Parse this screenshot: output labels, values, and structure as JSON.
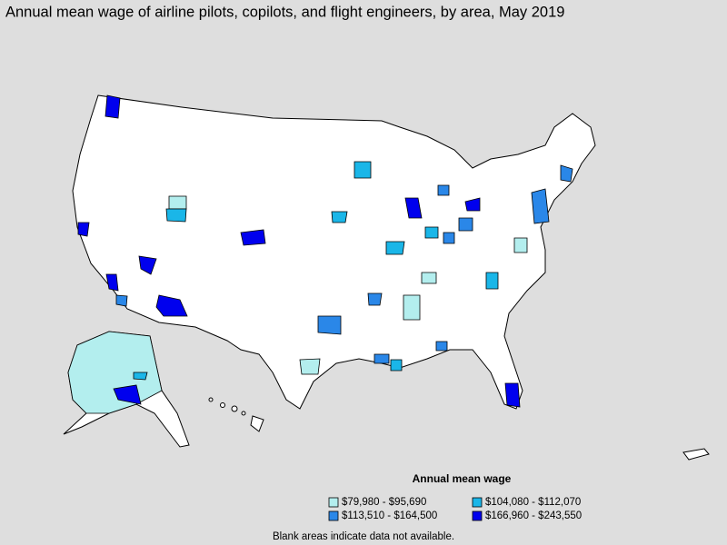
{
  "title": "Annual mean wage of airline pilots, copilots, and flight engineers, by area, May 2019",
  "legend": {
    "title": "Annual mean wage",
    "items": [
      {
        "label": "$79,980 - $95,690",
        "color": "#b3eeee"
      },
      {
        "label": "$104,080 - $112,070",
        "color": "#1ab6e8"
      },
      {
        "label": "$113,510 - $164,500",
        "color": "#2a87e8"
      },
      {
        "label": "$166,960 - $243,550",
        "color": "#0000ee"
      }
    ]
  },
  "note": "Blank areas indicate data not available."
}
